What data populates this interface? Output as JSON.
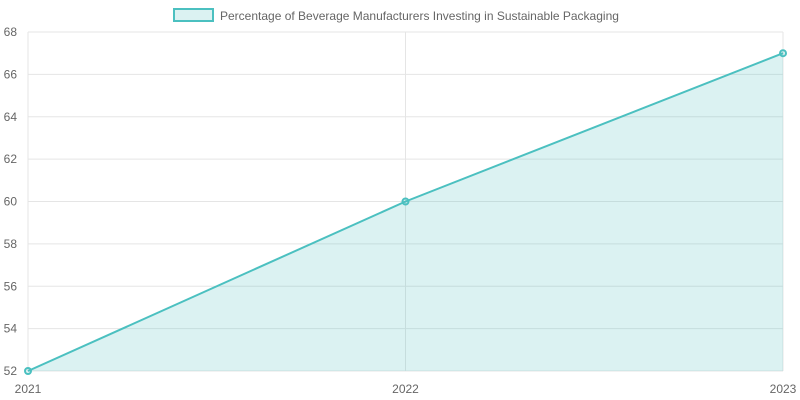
{
  "chart_data": {
    "type": "area",
    "categories": [
      "2021",
      "2022",
      "2023"
    ],
    "series": [
      {
        "name": "Percentage of Beverage Manufacturers Investing in Sustainable Packaging",
        "values": [
          52,
          60,
          67
        ]
      }
    ],
    "ylim": [
      52,
      68
    ],
    "yticks": [
      "52",
      "54",
      "56",
      "58",
      "60",
      "62",
      "64",
      "66",
      "68"
    ],
    "grid": true,
    "legend": "top-center",
    "colors": {
      "line": "#4BC0C0",
      "fill": "rgba(75,192,192,0.2)"
    }
  }
}
